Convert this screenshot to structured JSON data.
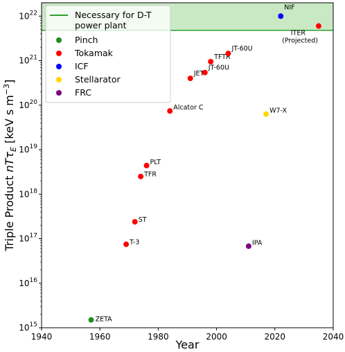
{
  "chart_data": {
    "type": "scatter",
    "xlabel": "Year",
    "ylabel": "Triple Product nTτE [keV s m⁻³]",
    "ylabel_parts": {
      "prefix": "Triple Product ",
      "var": "nT",
      "tau": "τ",
      "sub": "E",
      "units_open": " [keV s m",
      "exp": "−3",
      "units_close": "]"
    },
    "xlim": [
      1940,
      2040
    ],
    "ylim_log10": [
      15,
      22.3
    ],
    "log_y": true,
    "x_ticks": [
      1940,
      1960,
      1980,
      2000,
      2020,
      2040
    ],
    "y_ticks": [
      {
        "exp": 15,
        "base": "10",
        "sup": "15"
      },
      {
        "exp": 16,
        "base": "10",
        "sup": "16"
      },
      {
        "exp": 17,
        "base": "10",
        "sup": "17"
      },
      {
        "exp": 18,
        "base": "10",
        "sup": "18"
      },
      {
        "exp": 19,
        "base": "10",
        "sup": "19"
      },
      {
        "exp": 20,
        "base": "10",
        "sup": "20"
      },
      {
        "exp": 21,
        "base": "10",
        "sup": "21"
      },
      {
        "exp": 22,
        "base": "10",
        "sup": "22"
      }
    ],
    "threshold": {
      "label_line1": "Necessary for D-T",
      "label_line2": " power plant",
      "value": 4.8e+21,
      "color": "#2ca02c",
      "fill": "#c9e9c4"
    },
    "legend_position": "top-left",
    "series": [
      {
        "name": "Pinch",
        "color": "#228b22",
        "points": [
          {
            "label": "ZETA",
            "x": 1957,
            "y": 1500000000000000.0
          }
        ]
      },
      {
        "name": "Tokamak",
        "color": "#ff0000",
        "points": [
          {
            "label": "T-3",
            "x": 1969,
            "y": 7.5e+16
          },
          {
            "label": "ST",
            "x": 1972,
            "y": 2.4e+17
          },
          {
            "label": "TFR",
            "x": 1974,
            "y": 2.5e+18
          },
          {
            "label": "PLT",
            "x": 1976,
            "y": 4.4e+18
          },
          {
            "label": "Alcator C",
            "x": 1984,
            "y": 7.4e+19
          },
          {
            "label": "JET",
            "x": 1991,
            "y": 4e+20
          },
          {
            "label": "JT-60U",
            "x": 1996,
            "y": 5.4e+20
          },
          {
            "label": "TFTR",
            "x": 1998,
            "y": 9.5e+20
          },
          {
            "label": "JT-60U",
            "x": 2004,
            "y": 1.45e+21
          },
          {
            "label": "ITER\n(Projected)",
            "x": 2035,
            "y": 6e+21
          }
        ]
      },
      {
        "name": "ICF",
        "color": "#0000ff",
        "points": [
          {
            "label": "NIF",
            "x": 2022,
            "y": 1e+22
          }
        ]
      },
      {
        "name": "Stellarator",
        "color": "#ffd700",
        "points": [
          {
            "label": "W7-X",
            "x": 2017,
            "y": 6.3e+19
          }
        ]
      },
      {
        "name": "FRC",
        "color": "#800080",
        "points": [
          {
            "label": "IPA",
            "x": 2011,
            "y": 6.8e+16
          }
        ]
      }
    ]
  }
}
